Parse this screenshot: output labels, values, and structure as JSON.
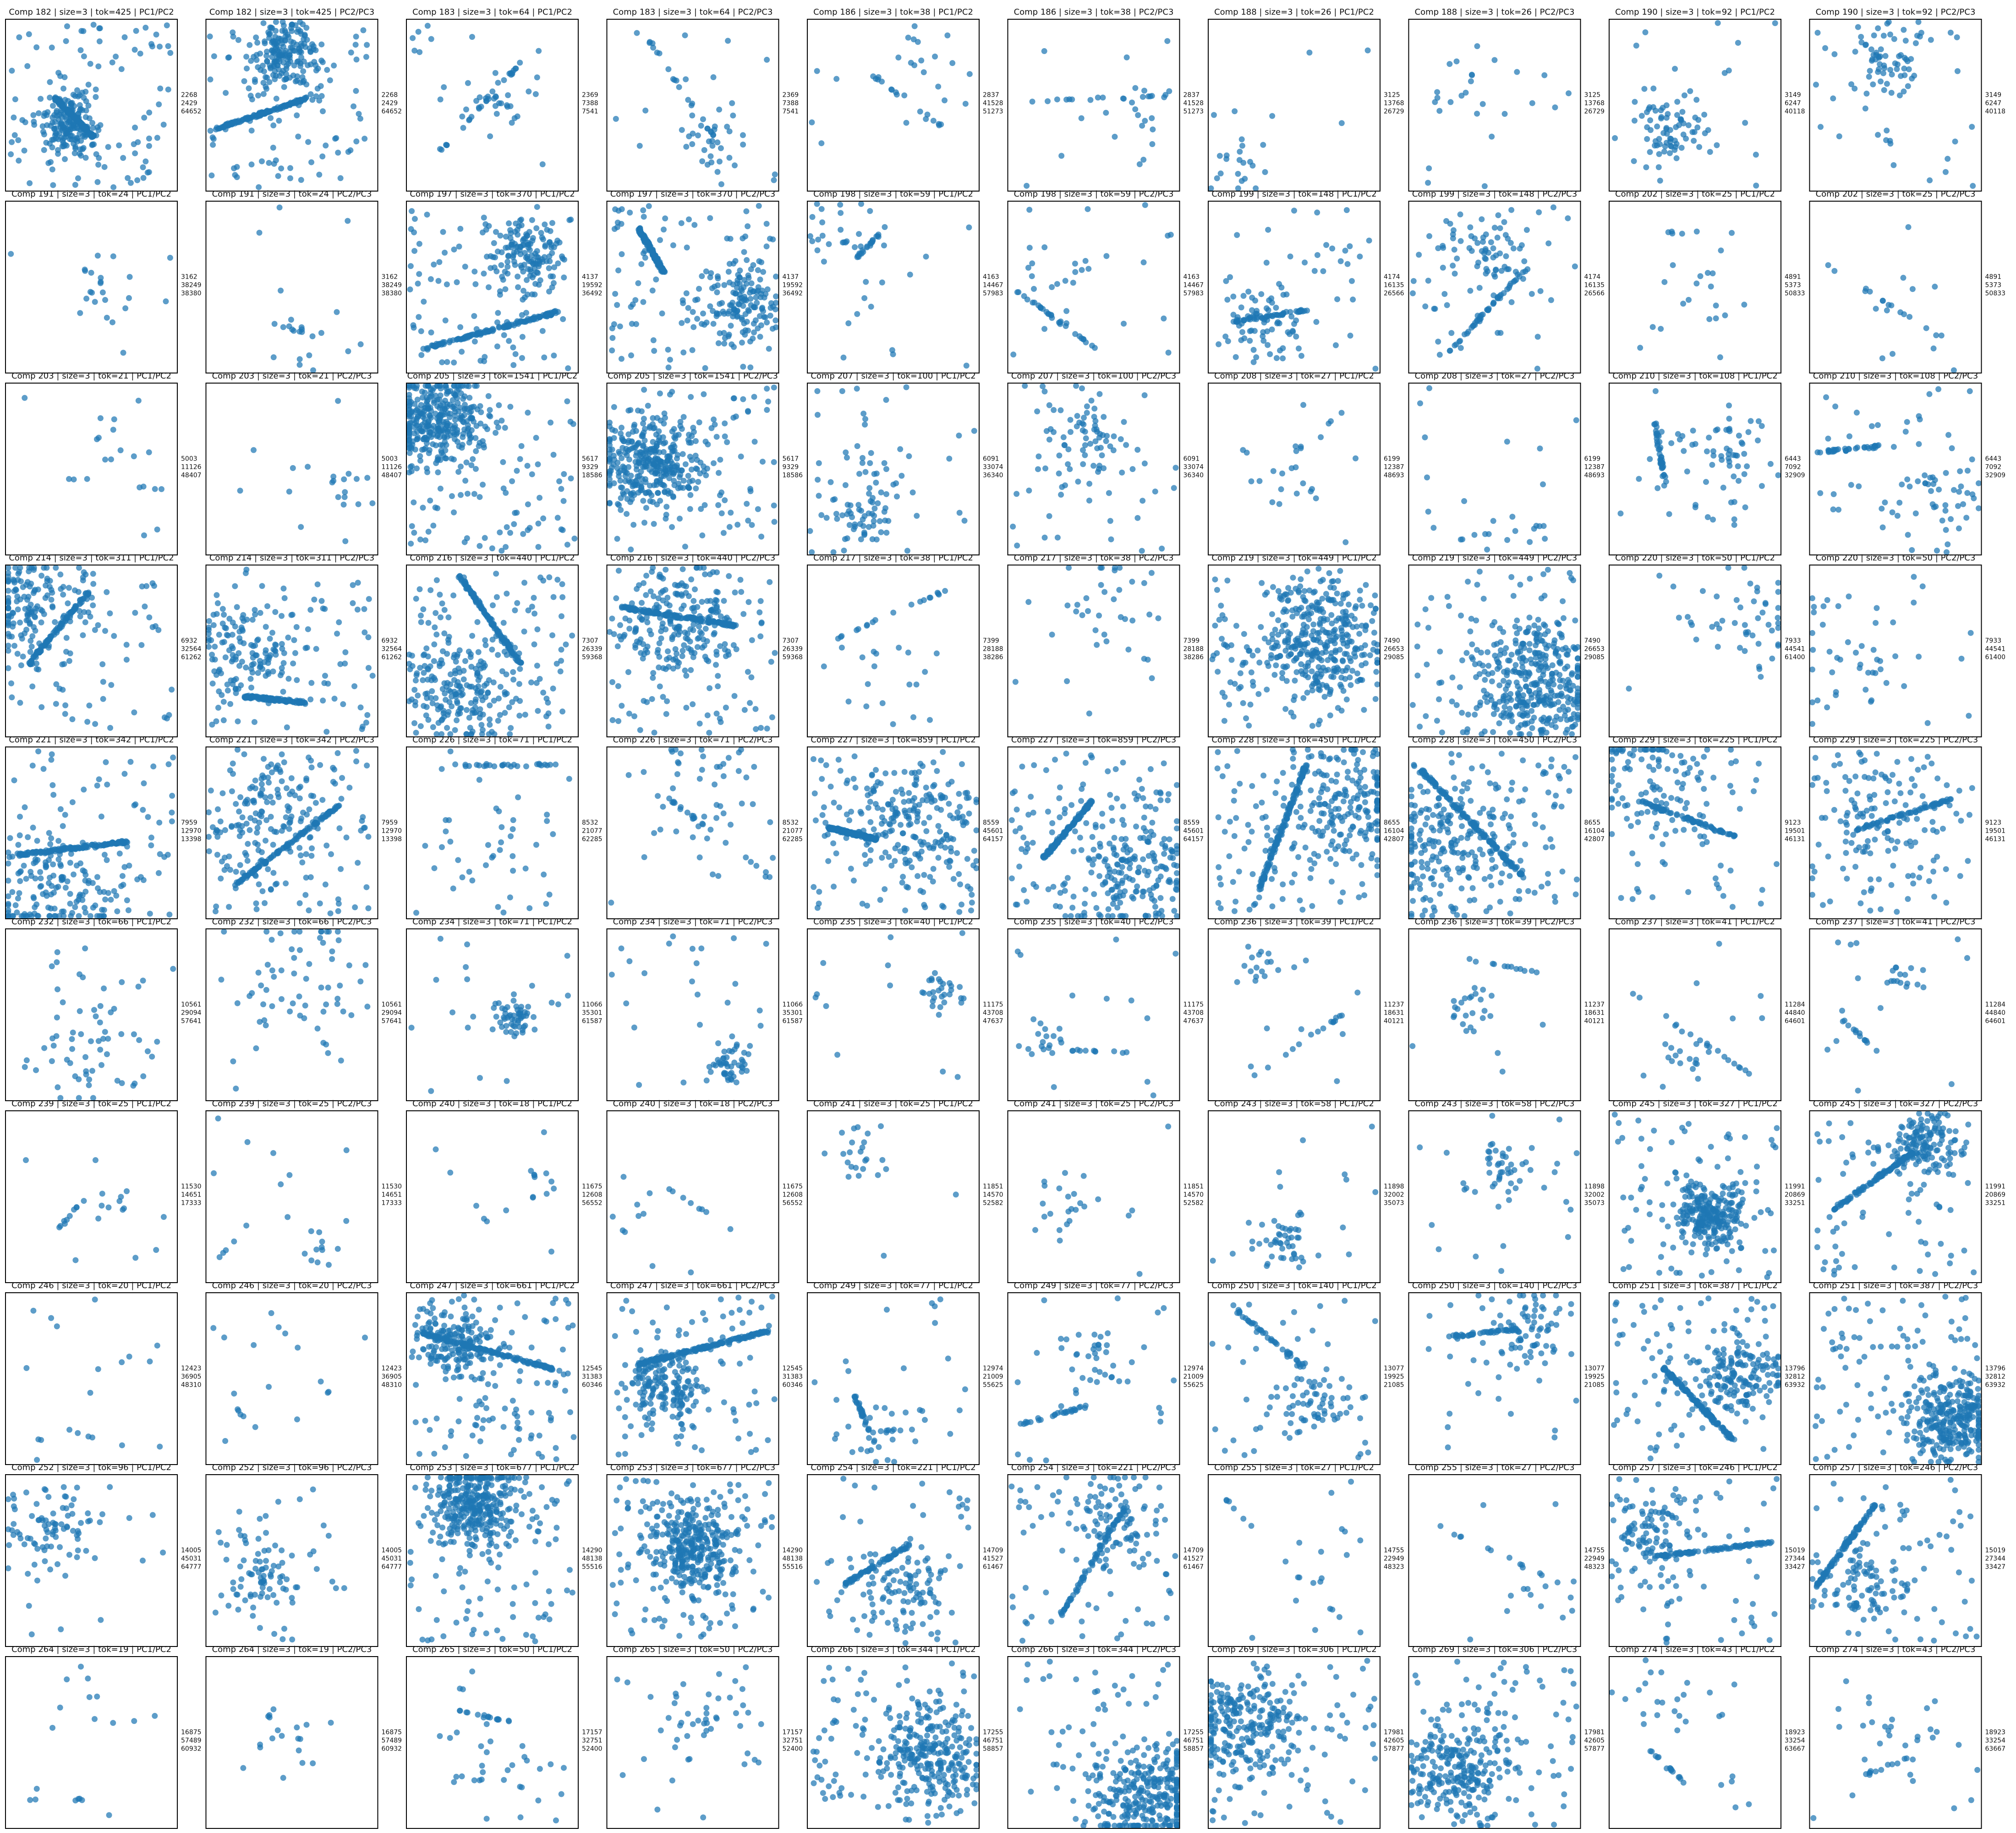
{
  "figure": {
    "columns": 10,
    "rows": 10,
    "point_color": "#1f77b4",
    "axes_visible": false
  },
  "chart_data": [
    {
      "type": "scatter",
      "title": "Comp 182 | size=3 | tok=425 | PC1/PC2",
      "ids": [
        "2268",
        "2429",
        "64652"
      ]
    },
    {
      "type": "scatter",
      "title": "Comp 182 | size=3 | tok=425 | PC2/PC3",
      "ids": [
        "2268",
        "2429",
        "64652"
      ]
    },
    {
      "type": "scatter",
      "title": "Comp 183 | size=3 | tok=64 | PC1/PC2",
      "ids": [
        "2369",
        "7388",
        "7541"
      ]
    },
    {
      "type": "scatter",
      "title": "Comp 183 | size=3 | tok=64 | PC2/PC3",
      "ids": [
        "2369",
        "7388",
        "7541"
      ]
    },
    {
      "type": "scatter",
      "title": "Comp 186 | size=3 | tok=38 | PC1/PC2",
      "ids": [
        "2837",
        "41528",
        "51273"
      ]
    },
    {
      "type": "scatter",
      "title": "Comp 186 | size=3 | tok=38 | PC2/PC3",
      "ids": [
        "2837",
        "41528",
        "51273"
      ]
    },
    {
      "type": "scatter",
      "title": "Comp 188 | size=3 | tok=26 | PC1/PC2",
      "ids": [
        "3125",
        "13768",
        "26729"
      ]
    },
    {
      "type": "scatter",
      "title": "Comp 188 | size=3 | tok=26 | PC2/PC3",
      "ids": [
        "3125",
        "13768",
        "26729"
      ]
    },
    {
      "type": "scatter",
      "title": "Comp 190 | size=3 | tok=92 | PC1/PC2",
      "ids": [
        "3149",
        "6247",
        "40118"
      ]
    },
    {
      "type": "scatter",
      "title": "Comp 190 | size=3 | tok=92 | PC2/PC3",
      "ids": [
        "3149",
        "6247",
        "40118"
      ]
    },
    {
      "type": "scatter",
      "title": "Comp 191 | size=3 | tok=24 | PC1/PC2",
      "ids": [
        "3162",
        "38249",
        "38380"
      ]
    },
    {
      "type": "scatter",
      "title": "Comp 191 | size=3 | tok=24 | PC2/PC3",
      "ids": [
        "3162",
        "38249",
        "38380"
      ]
    },
    {
      "type": "scatter",
      "title": "Comp 197 | size=3 | tok=370 | PC1/PC2",
      "ids": [
        "4137",
        "19592",
        "36492"
      ]
    },
    {
      "type": "scatter",
      "title": "Comp 197 | size=3 | tok=370 | PC2/PC3",
      "ids": [
        "4137",
        "19592",
        "36492"
      ]
    },
    {
      "type": "scatter",
      "title": "Comp 198 | size=3 | tok=59 | PC1/PC2",
      "ids": [
        "4163",
        "14467",
        "57983"
      ]
    },
    {
      "type": "scatter",
      "title": "Comp 198 | size=3 | tok=59 | PC2/PC3",
      "ids": [
        "4163",
        "14467",
        "57983"
      ]
    },
    {
      "type": "scatter",
      "title": "Comp 199 | size=3 | tok=148 | PC1/PC2",
      "ids": [
        "4174",
        "16135",
        "26566"
      ]
    },
    {
      "type": "scatter",
      "title": "Comp 199 | size=3 | tok=148 | PC2/PC3",
      "ids": [
        "4174",
        "16135",
        "26566"
      ]
    },
    {
      "type": "scatter",
      "title": "Comp 202 | size=3 | tok=25 | PC1/PC2",
      "ids": [
        "4891",
        "5373",
        "50833"
      ]
    },
    {
      "type": "scatter",
      "title": "Comp 202 | size=3 | tok=25 | PC2/PC3",
      "ids": [
        "4891",
        "5373",
        "50833"
      ]
    },
    {
      "type": "scatter",
      "title": "Comp 203 | size=3 | tok=21 | PC1/PC2",
      "ids": [
        "5003",
        "11126",
        "48407"
      ]
    },
    {
      "type": "scatter",
      "title": "Comp 203 | size=3 | tok=21 | PC2/PC3",
      "ids": [
        "5003",
        "11126",
        "48407"
      ]
    },
    {
      "type": "scatter",
      "title": "Comp 205 | size=3 | tok=1541 | PC1/PC2",
      "ids": [
        "5617",
        "9329",
        "18586"
      ]
    },
    {
      "type": "scatter",
      "title": "Comp 205 | size=3 | tok=1541 | PC2/PC3",
      "ids": [
        "5617",
        "9329",
        "18586"
      ]
    },
    {
      "type": "scatter",
      "title": "Comp 207 | size=3 | tok=100 | PC1/PC2",
      "ids": [
        "6091",
        "33074",
        "36340"
      ]
    },
    {
      "type": "scatter",
      "title": "Comp 207 | size=3 | tok=100 | PC2/PC3",
      "ids": [
        "6091",
        "33074",
        "36340"
      ]
    },
    {
      "type": "scatter",
      "title": "Comp 208 | size=3 | tok=27 | PC1/PC2",
      "ids": [
        "6199",
        "12387",
        "48693"
      ]
    },
    {
      "type": "scatter",
      "title": "Comp 208 | size=3 | tok=27 | PC2/PC3",
      "ids": [
        "6199",
        "12387",
        "48693"
      ]
    },
    {
      "type": "scatter",
      "title": "Comp 210 | size=3 | tok=108 | PC1/PC2",
      "ids": [
        "6443",
        "7092",
        "32909"
      ]
    },
    {
      "type": "scatter",
      "title": "Comp 210 | size=3 | tok=108 | PC2/PC3",
      "ids": [
        "6443",
        "7092",
        "32909"
      ]
    },
    {
      "type": "scatter",
      "title": "Comp 214 | size=3 | tok=311 | PC1/PC2",
      "ids": [
        "6932",
        "32564",
        "61262"
      ]
    },
    {
      "type": "scatter",
      "title": "Comp 214 | size=3 | tok=311 | PC2/PC3",
      "ids": [
        "6932",
        "32564",
        "61262"
      ]
    },
    {
      "type": "scatter",
      "title": "Comp 216 | size=3 | tok=440 | PC1/PC2",
      "ids": [
        "7307",
        "26339",
        "59368"
      ]
    },
    {
      "type": "scatter",
      "title": "Comp 216 | size=3 | tok=440 | PC2/PC3",
      "ids": [
        "7307",
        "26339",
        "59368"
      ]
    },
    {
      "type": "scatter",
      "title": "Comp 217 | size=3 | tok=38 | PC1/PC2",
      "ids": [
        "7399",
        "28188",
        "38286"
      ]
    },
    {
      "type": "scatter",
      "title": "Comp 217 | size=3 | tok=38 | PC2/PC3",
      "ids": [
        "7399",
        "28188",
        "38286"
      ]
    },
    {
      "type": "scatter",
      "title": "Comp 219 | size=3 | tok=449 | PC1/PC2",
      "ids": [
        "7490",
        "26653",
        "29085"
      ]
    },
    {
      "type": "scatter",
      "title": "Comp 219 | size=3 | tok=449 | PC2/PC3",
      "ids": [
        "7490",
        "26653",
        "29085"
      ]
    },
    {
      "type": "scatter",
      "title": "Comp 220 | size=3 | tok=50 | PC1/PC2",
      "ids": [
        "7933",
        "44541",
        "61400"
      ]
    },
    {
      "type": "scatter",
      "title": "Comp 220 | size=3 | tok=50 | PC2/PC3",
      "ids": [
        "7933",
        "44541",
        "61400"
      ]
    },
    {
      "type": "scatter",
      "title": "Comp 221 | size=3 | tok=342 | PC1/PC2",
      "ids": [
        "7959",
        "12970",
        "13398"
      ]
    },
    {
      "type": "scatter",
      "title": "Comp 221 | size=3 | tok=342 | PC2/PC3",
      "ids": [
        "7959",
        "12970",
        "13398"
      ]
    },
    {
      "type": "scatter",
      "title": "Comp 226 | size=3 | tok=71 | PC1/PC2",
      "ids": [
        "8532",
        "21077",
        "62285"
      ]
    },
    {
      "type": "scatter",
      "title": "Comp 226 | size=3 | tok=71 | PC2/PC3",
      "ids": [
        "8532",
        "21077",
        "62285"
      ]
    },
    {
      "type": "scatter",
      "title": "Comp 227 | size=3 | tok=859 | PC1/PC2",
      "ids": [
        "8559",
        "45601",
        "64157"
      ]
    },
    {
      "type": "scatter",
      "title": "Comp 227 | size=3 | tok=859 | PC2/PC3",
      "ids": [
        "8559",
        "45601",
        "64157"
      ]
    },
    {
      "type": "scatter",
      "title": "Comp 228 | size=3 | tok=450 | PC1/PC2",
      "ids": [
        "8655",
        "16104",
        "42807"
      ]
    },
    {
      "type": "scatter",
      "title": "Comp 228 | size=3 | tok=450 | PC2/PC3",
      "ids": [
        "8655",
        "16104",
        "42807"
      ]
    },
    {
      "type": "scatter",
      "title": "Comp 229 | size=3 | tok=225 | PC1/PC2",
      "ids": [
        "9123",
        "19501",
        "46131"
      ]
    },
    {
      "type": "scatter",
      "title": "Comp 229 | size=3 | tok=225 | PC2/PC3",
      "ids": [
        "9123",
        "19501",
        "46131"
      ]
    },
    {
      "type": "scatter",
      "title": "Comp 232 | size=3 | tok=66 | PC1/PC2",
      "ids": [
        "10561",
        "29094",
        "57641"
      ]
    },
    {
      "type": "scatter",
      "title": "Comp 232 | size=3 | tok=66 | PC2/PC3",
      "ids": [
        "10561",
        "29094",
        "57641"
      ]
    },
    {
      "type": "scatter",
      "title": "Comp 234 | size=3 | tok=71 | PC1/PC2",
      "ids": [
        "11066",
        "35301",
        "61587"
      ]
    },
    {
      "type": "scatter",
      "title": "Comp 234 | size=3 | tok=71 | PC2/PC3",
      "ids": [
        "11066",
        "35301",
        "61587"
      ]
    },
    {
      "type": "scatter",
      "title": "Comp 235 | size=3 | tok=40 | PC1/PC2",
      "ids": [
        "11175",
        "43708",
        "47637"
      ]
    },
    {
      "type": "scatter",
      "title": "Comp 235 | size=3 | tok=40 | PC2/PC3",
      "ids": [
        "11175",
        "43708",
        "47637"
      ]
    },
    {
      "type": "scatter",
      "title": "Comp 236 | size=3 | tok=39 | PC1/PC2",
      "ids": [
        "11237",
        "18631",
        "40121"
      ]
    },
    {
      "type": "scatter",
      "title": "Comp 236 | size=3 | tok=39 | PC2/PC3",
      "ids": [
        "11237",
        "18631",
        "40121"
      ]
    },
    {
      "type": "scatter",
      "title": "Comp 237 | size=3 | tok=41 | PC1/PC2",
      "ids": [
        "11284",
        "44840",
        "64601"
      ]
    },
    {
      "type": "scatter",
      "title": "Comp 237 | size=3 | tok=41 | PC2/PC3",
      "ids": [
        "11284",
        "44840",
        "64601"
      ]
    },
    {
      "type": "scatter",
      "title": "Comp 239 | size=3 | tok=25 | PC1/PC2",
      "ids": [
        "11530",
        "14651",
        "17333"
      ]
    },
    {
      "type": "scatter",
      "title": "Comp 239 | size=3 | tok=25 | PC2/PC3",
      "ids": [
        "11530",
        "14651",
        "17333"
      ]
    },
    {
      "type": "scatter",
      "title": "Comp 240 | size=3 | tok=18 | PC1/PC2",
      "ids": [
        "11675",
        "12608",
        "56552"
      ]
    },
    {
      "type": "scatter",
      "title": "Comp 240 | size=3 | tok=18 | PC2/PC3",
      "ids": [
        "11675",
        "12608",
        "56552"
      ]
    },
    {
      "type": "scatter",
      "title": "Comp 241 | size=3 | tok=25 | PC1/PC2",
      "ids": [
        "11851",
        "14570",
        "52582"
      ]
    },
    {
      "type": "scatter",
      "title": "Comp 241 | size=3 | tok=25 | PC2/PC3",
      "ids": [
        "11851",
        "14570",
        "52582"
      ]
    },
    {
      "type": "scatter",
      "title": "Comp 243 | size=3 | tok=58 | PC1/PC2",
      "ids": [
        "11898",
        "32002",
        "35073"
      ]
    },
    {
      "type": "scatter",
      "title": "Comp 243 | size=3 | tok=58 | PC2/PC3",
      "ids": [
        "11898",
        "32002",
        "35073"
      ]
    },
    {
      "type": "scatter",
      "title": "Comp 245 | size=3 | tok=327 | PC1/PC2",
      "ids": [
        "11991",
        "20869",
        "33251"
      ]
    },
    {
      "type": "scatter",
      "title": "Comp 245 | size=3 | tok=327 | PC2/PC3",
      "ids": [
        "11991",
        "20869",
        "33251"
      ]
    },
    {
      "type": "scatter",
      "title": "Comp 246 | size=3 | tok=20 | PC1/PC2",
      "ids": [
        "12423",
        "36905",
        "48310"
      ]
    },
    {
      "type": "scatter",
      "title": "Comp 246 | size=3 | tok=20 | PC2/PC3",
      "ids": [
        "12423",
        "36905",
        "48310"
      ]
    },
    {
      "type": "scatter",
      "title": "Comp 247 | size=3 | tok=661 | PC1/PC2",
      "ids": [
        "12545",
        "31383",
        "60346"
      ]
    },
    {
      "type": "scatter",
      "title": "Comp 247 | size=3 | tok=661 | PC2/PC3",
      "ids": [
        "12545",
        "31383",
        "60346"
      ]
    },
    {
      "type": "scatter",
      "title": "Comp 249 | size=3 | tok=77 | PC1/PC2",
      "ids": [
        "12974",
        "21009",
        "55625"
      ]
    },
    {
      "type": "scatter",
      "title": "Comp 249 | size=3 | tok=77 | PC2/PC3",
      "ids": [
        "12974",
        "21009",
        "55625"
      ]
    },
    {
      "type": "scatter",
      "title": "Comp 250 | size=3 | tok=140 | PC1/PC2",
      "ids": [
        "13077",
        "19925",
        "21085"
      ]
    },
    {
      "type": "scatter",
      "title": "Comp 250 | size=3 | tok=140 | PC2/PC3",
      "ids": [
        "13077",
        "19925",
        "21085"
      ]
    },
    {
      "type": "scatter",
      "title": "Comp 251 | size=3 | tok=387 | PC1/PC2",
      "ids": [
        "13796",
        "32812",
        "63932"
      ]
    },
    {
      "type": "scatter",
      "title": "Comp 251 | size=3 | tok=387 | PC2/PC3",
      "ids": [
        "13796",
        "32812",
        "63932"
      ]
    },
    {
      "type": "scatter",
      "title": "Comp 252 | size=3 | tok=96 | PC1/PC2",
      "ids": [
        "14005",
        "45031",
        "64777"
      ]
    },
    {
      "type": "scatter",
      "title": "Comp 252 | size=3 | tok=96 | PC2/PC3",
      "ids": [
        "14005",
        "45031",
        "64777"
      ]
    },
    {
      "type": "scatter",
      "title": "Comp 253 | size=3 | tok=677 | PC1/PC2",
      "ids": [
        "14290",
        "48138",
        "55516"
      ]
    },
    {
      "type": "scatter",
      "title": "Comp 253 | size=3 | tok=677 | PC2/PC3",
      "ids": [
        "14290",
        "48138",
        "55516"
      ]
    },
    {
      "type": "scatter",
      "title": "Comp 254 | size=3 | tok=221 | PC1/PC2",
      "ids": [
        "14709",
        "41527",
        "61467"
      ]
    },
    {
      "type": "scatter",
      "title": "Comp 254 | size=3 | tok=221 | PC2/PC3",
      "ids": [
        "14709",
        "41527",
        "61467"
      ]
    },
    {
      "type": "scatter",
      "title": "Comp 255 | size=3 | tok=27 | PC1/PC2",
      "ids": [
        "14755",
        "22949",
        "48323"
      ]
    },
    {
      "type": "scatter",
      "title": "Comp 255 | size=3 | tok=27 | PC2/PC3",
      "ids": [
        "14755",
        "22949",
        "48323"
      ]
    },
    {
      "type": "scatter",
      "title": "Comp 257 | size=3 | tok=246 | PC1/PC2",
      "ids": [
        "15019",
        "27344",
        "33427"
      ]
    },
    {
      "type": "scatter",
      "title": "Comp 257 | size=3 | tok=246 | PC2/PC3",
      "ids": [
        "15019",
        "27344",
        "33427"
      ]
    },
    {
      "type": "scatter",
      "title": "Comp 264 | size=3 | tok=19 | PC1/PC2",
      "ids": [
        "16875",
        "57489",
        "60932"
      ]
    },
    {
      "type": "scatter",
      "title": "Comp 264 | size=3 | tok=19 | PC2/PC3",
      "ids": [
        "16875",
        "57489",
        "60932"
      ]
    },
    {
      "type": "scatter",
      "title": "Comp 265 | size=3 | tok=50 | PC1/PC2",
      "ids": [
        "17157",
        "32751",
        "52400"
      ]
    },
    {
      "type": "scatter",
      "title": "Comp 265 | size=3 | tok=50 | PC2/PC3",
      "ids": [
        "17157",
        "32751",
        "52400"
      ]
    },
    {
      "type": "scatter",
      "title": "Comp 266 | size=3 | tok=344 | PC1/PC2",
      "ids": [
        "17255",
        "46751",
        "58857"
      ]
    },
    {
      "type": "scatter",
      "title": "Comp 266 | size=3 | tok=344 | PC2/PC3",
      "ids": [
        "17255",
        "46751",
        "58857"
      ]
    },
    {
      "type": "scatter",
      "title": "Comp 269 | size=3 | tok=306 | PC1/PC2",
      "ids": [
        "17981",
        "42605",
        "57877"
      ]
    },
    {
      "type": "scatter",
      "title": "Comp 269 | size=3 | tok=306 | PC2/PC3",
      "ids": [
        "17981",
        "42605",
        "57877"
      ]
    },
    {
      "type": "scatter",
      "title": "Comp 274 | size=3 | tok=43 | PC1/PC2",
      "ids": [
        "18923",
        "33254",
        "63667"
      ]
    },
    {
      "type": "scatter",
      "title": "Comp 274 | size=3 | tok=43 | PC2/PC3",
      "ids": [
        "18923",
        "33254",
        "63667"
      ]
    }
  ]
}
